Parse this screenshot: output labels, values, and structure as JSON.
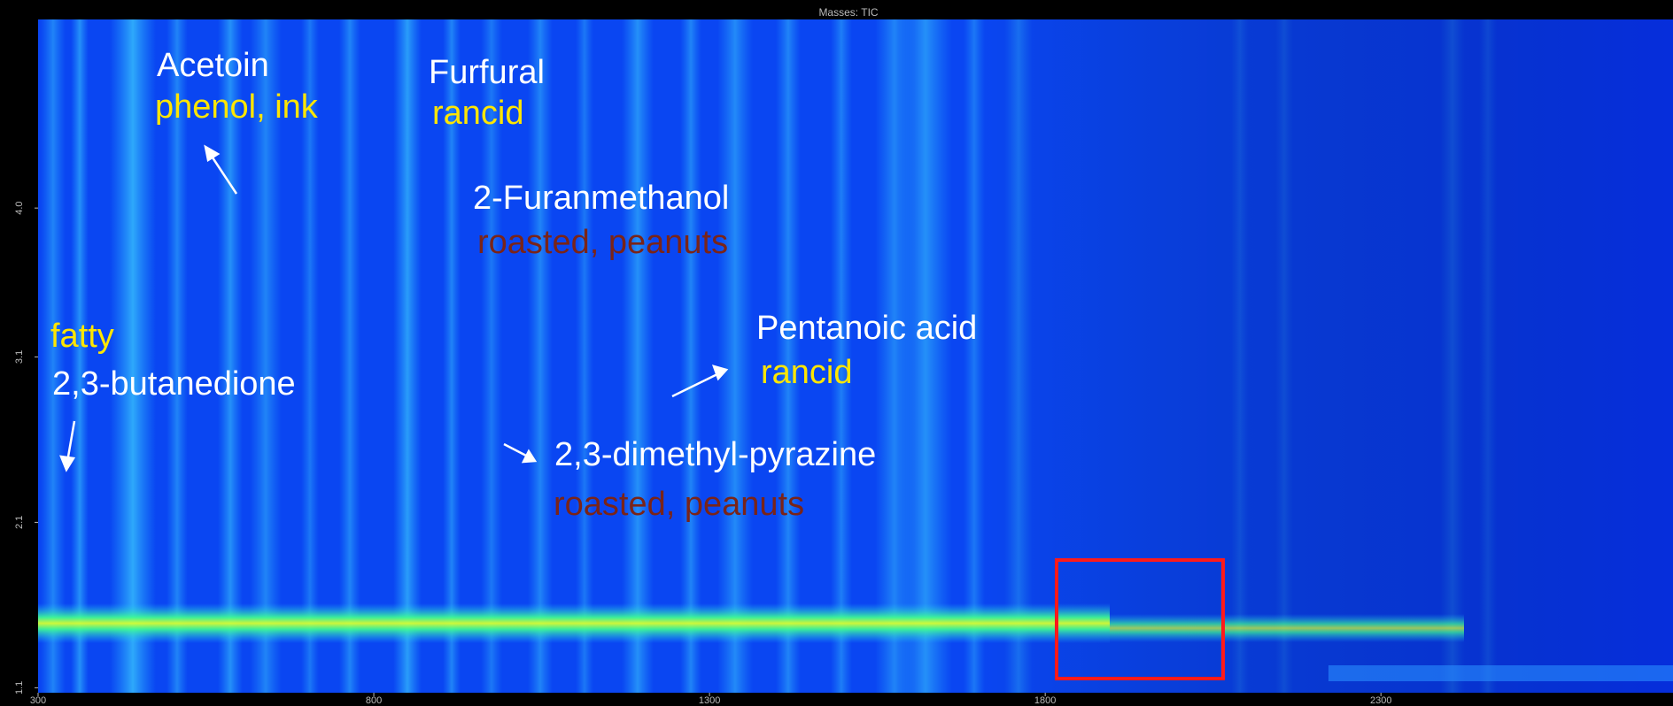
{
  "chart_data": {
    "type": "contour",
    "title": "Masses: TIC",
    "xlim": [
      300,
      2735
    ],
    "xticks": [
      300,
      800,
      1300,
      1800,
      2300
    ],
    "ylim": [
      1.07,
      5.14
    ],
    "yticks": [
      1.1,
      2.1,
      3.1,
      {
        "value": 4,
        "label": "4.0"
      }
    ],
    "annotations": [
      {
        "text": "Acetoin",
        "color": "#ffffff"
      },
      {
        "text": "phenol, ink",
        "color": "#ffe600"
      },
      {
        "text": "Furfural",
        "color": "#ffffff"
      },
      {
        "text": "rancid",
        "color": "#ffe600"
      },
      {
        "text": "2-Furanmethanol",
        "color": "#ffffff"
      },
      {
        "text": "roasted, peanuts",
        "color": "#7a2418"
      },
      {
        "text": "fatty",
        "color": "#ffe600"
      },
      {
        "text": "2,3-butanedione",
        "color": "#ffffff"
      },
      {
        "text": "Pentanoic acid",
        "color": "#ffffff"
      },
      {
        "text": "rancid",
        "color": "#ffe600"
      },
      {
        "text": "2,3-dimethyl-pyrazine",
        "color": "#ffffff"
      },
      {
        "text": "roasted, peanuts",
        "color": "#7a2418"
      }
    ]
  }
}
